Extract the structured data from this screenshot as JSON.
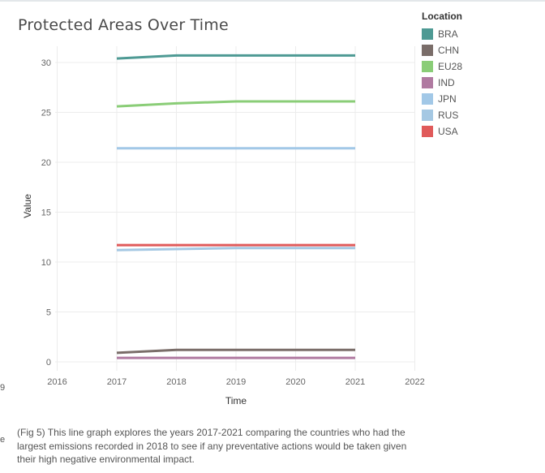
{
  "side_text": {
    "glyph_a": "9",
    "glyph_b": "e"
  },
  "caption": "(Fig 5) This line graph explores the years 2017-2021 comparing the countries who had the largest emissions recorded in 2018 to see if any preventative actions would be taken given their high negative environmental impact.",
  "chart_data": {
    "type": "line",
    "title": "Protected Areas Over Time",
    "xlabel": "Time",
    "ylabel": "Value",
    "xlim": [
      2016,
      2022
    ],
    "ylim": [
      0,
      32
    ],
    "x_ticks": [
      2016,
      2017,
      2018,
      2019,
      2020,
      2021,
      2022
    ],
    "y_ticks": [
      0,
      5,
      10,
      15,
      20,
      25,
      30
    ],
    "grid": true,
    "legend": {
      "title": "Location",
      "placement": "top-right"
    },
    "x": [
      2017,
      2018,
      2019,
      2020,
      2021
    ],
    "series": [
      {
        "name": "BRA",
        "color": "#4e9a94",
        "values": [
          30.4,
          30.7,
          30.7,
          30.7,
          30.7
        ]
      },
      {
        "name": "CHN",
        "color": "#7a6d69",
        "values": [
          0.9,
          1.2,
          1.2,
          1.2,
          1.2
        ]
      },
      {
        "name": "EU28",
        "color": "#8acd77",
        "values": [
          25.6,
          25.9,
          26.1,
          26.1,
          26.1
        ]
      },
      {
        "name": "IND",
        "color": "#b07aa1",
        "values": [
          0.4,
          0.4,
          0.4,
          0.4,
          0.4
        ]
      },
      {
        "name": "JPN",
        "color": "#a2c8e7",
        "values": [
          21.4,
          21.4,
          21.4,
          21.4,
          21.4
        ]
      },
      {
        "name": "RUS",
        "color": "#a5c8e3",
        "values": [
          11.2,
          11.3,
          11.4,
          11.4,
          11.4
        ]
      },
      {
        "name": "USA",
        "color": "#e05a5a",
        "values": [
          11.7,
          11.7,
          11.7,
          11.7,
          11.7
        ]
      }
    ]
  }
}
